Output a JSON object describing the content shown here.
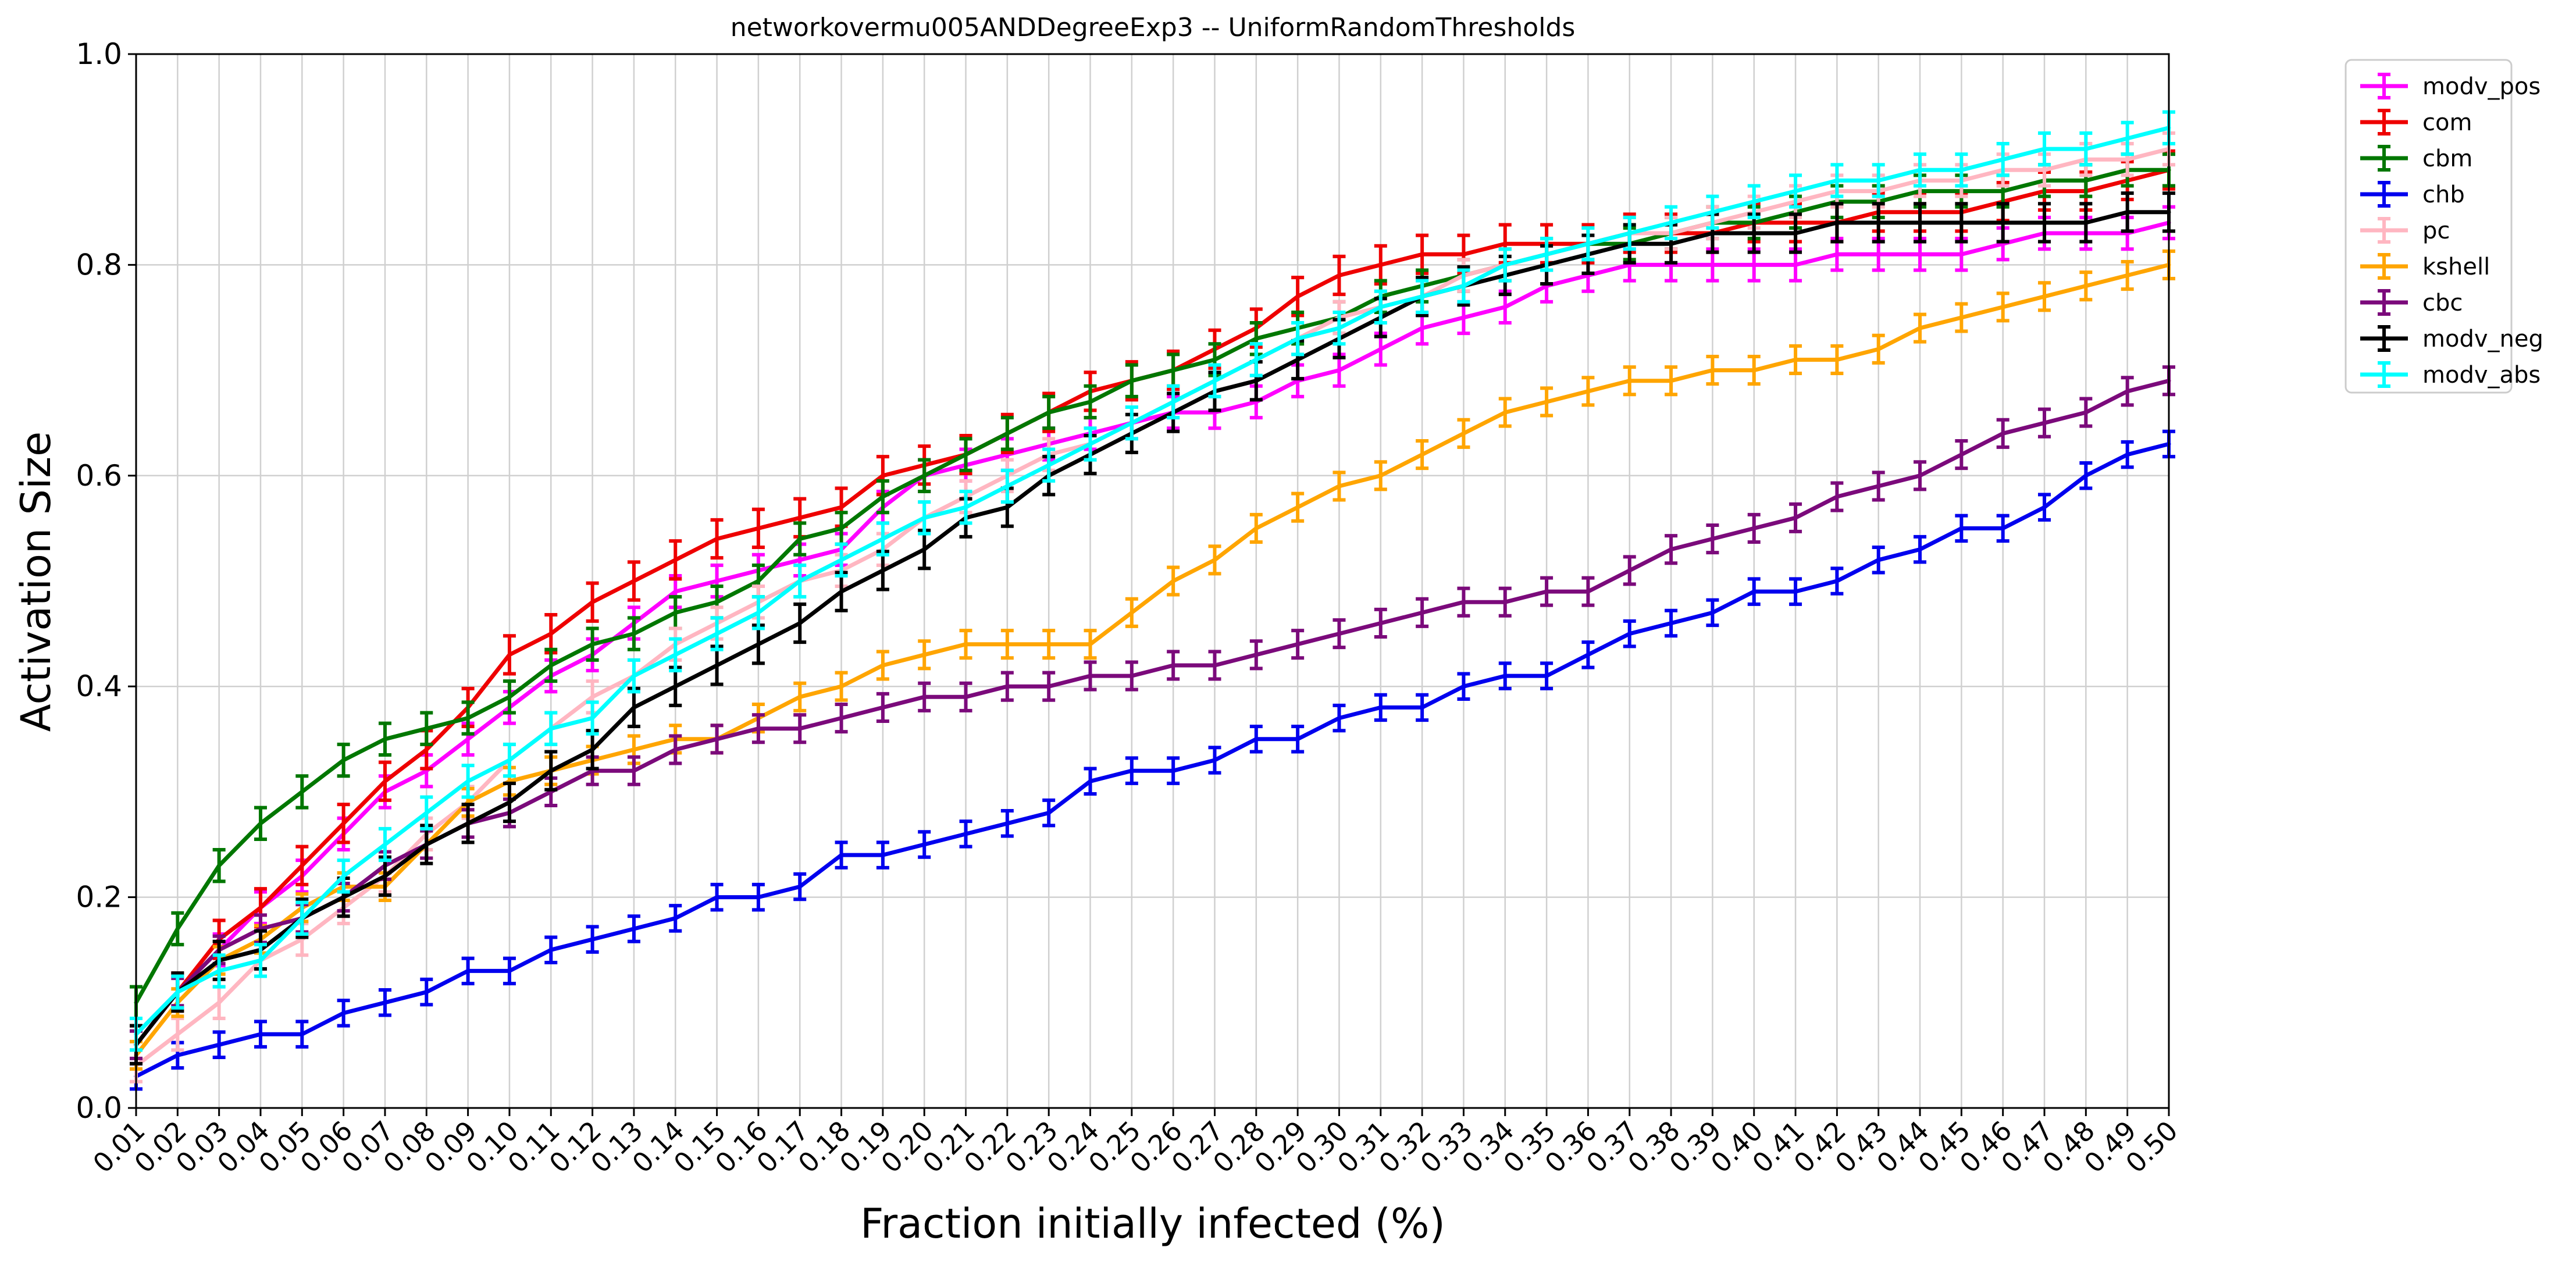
{
  "chart_data": {
    "type": "line",
    "title": "networkovermu005ANDDegreeExp3 -- UniformRandomThresholds",
    "xlabel": "Fraction initially infected (%)",
    "ylabel": "Activation Size",
    "ylim": [
      0.0,
      1.0
    ],
    "yticks": [
      "0.0",
      "0.2",
      "0.4",
      "0.6",
      "0.8",
      "1.0"
    ],
    "x": [
      "0.01",
      "0.02",
      "0.03",
      "0.04",
      "0.05",
      "0.06",
      "0.07",
      "0.08",
      "0.09",
      "0.10",
      "0.11",
      "0.12",
      "0.13",
      "0.14",
      "0.15",
      "0.16",
      "0.17",
      "0.18",
      "0.19",
      "0.20",
      "0.21",
      "0.22",
      "0.23",
      "0.24",
      "0.25",
      "0.26",
      "0.27",
      "0.28",
      "0.29",
      "0.30",
      "0.31",
      "0.32",
      "0.33",
      "0.34",
      "0.35",
      "0.36",
      "0.37",
      "0.38",
      "0.39",
      "0.40",
      "0.41",
      "0.42",
      "0.43",
      "0.44",
      "0.45",
      "0.46",
      "0.47",
      "0.48",
      "0.49",
      "0.50"
    ],
    "grid": true,
    "legend_position": "outside-top-right",
    "series": [
      {
        "name": "modv_pos",
        "color": "#ff00ff",
        "error": 0.015,
        "values": [
          0.07,
          0.11,
          0.15,
          0.19,
          0.22,
          0.26,
          0.3,
          0.32,
          0.35,
          0.38,
          0.41,
          0.43,
          0.46,
          0.49,
          0.5,
          0.51,
          0.52,
          0.53,
          0.57,
          0.6,
          0.61,
          0.62,
          0.63,
          0.64,
          0.65,
          0.66,
          0.66,
          0.67,
          0.69,
          0.7,
          0.72,
          0.74,
          0.75,
          0.76,
          0.78,
          0.79,
          0.8,
          0.8,
          0.8,
          0.8,
          0.8,
          0.81,
          0.81,
          0.81,
          0.81,
          0.82,
          0.83,
          0.83,
          0.83,
          0.84
        ]
      },
      {
        "name": "com",
        "color": "#ee0000",
        "error": 0.018,
        "values": [
          0.06,
          0.11,
          0.16,
          0.19,
          0.23,
          0.27,
          0.31,
          0.34,
          0.38,
          0.43,
          0.45,
          0.48,
          0.5,
          0.52,
          0.54,
          0.55,
          0.56,
          0.57,
          0.6,
          0.61,
          0.62,
          0.64,
          0.66,
          0.68,
          0.69,
          0.7,
          0.72,
          0.74,
          0.77,
          0.79,
          0.8,
          0.81,
          0.81,
          0.82,
          0.82,
          0.82,
          0.83,
          0.83,
          0.83,
          0.84,
          0.84,
          0.84,
          0.85,
          0.85,
          0.85,
          0.86,
          0.87,
          0.87,
          0.88,
          0.89
        ]
      },
      {
        "name": "cbm",
        "color": "#007700",
        "error": 0.015,
        "values": [
          0.1,
          0.17,
          0.23,
          0.27,
          0.3,
          0.33,
          0.35,
          0.36,
          0.37,
          0.39,
          0.42,
          0.44,
          0.45,
          0.47,
          0.48,
          0.5,
          0.54,
          0.55,
          0.58,
          0.6,
          0.62,
          0.64,
          0.66,
          0.67,
          0.69,
          0.7,
          0.71,
          0.73,
          0.74,
          0.75,
          0.77,
          0.78,
          0.79,
          0.8,
          0.81,
          0.82,
          0.82,
          0.83,
          0.84,
          0.84,
          0.85,
          0.86,
          0.86,
          0.87,
          0.87,
          0.87,
          0.88,
          0.88,
          0.89,
          0.89
        ]
      },
      {
        "name": "chb",
        "color": "#0000ee",
        "error": 0.012,
        "values": [
          0.03,
          0.05,
          0.06,
          0.07,
          0.07,
          0.09,
          0.1,
          0.11,
          0.13,
          0.13,
          0.15,
          0.16,
          0.17,
          0.18,
          0.2,
          0.2,
          0.21,
          0.24,
          0.24,
          0.25,
          0.26,
          0.27,
          0.28,
          0.31,
          0.32,
          0.32,
          0.33,
          0.35,
          0.35,
          0.37,
          0.38,
          0.38,
          0.4,
          0.41,
          0.41,
          0.43,
          0.45,
          0.46,
          0.47,
          0.49,
          0.49,
          0.5,
          0.52,
          0.53,
          0.55,
          0.55,
          0.57,
          0.6,
          0.62,
          0.63
        ]
      },
      {
        "name": "pc",
        "color": "#ffb6c1",
        "error": 0.015,
        "values": [
          0.04,
          0.07,
          0.1,
          0.14,
          0.16,
          0.19,
          0.22,
          0.26,
          0.29,
          0.33,
          0.36,
          0.39,
          0.41,
          0.44,
          0.46,
          0.48,
          0.5,
          0.51,
          0.53,
          0.56,
          0.58,
          0.6,
          0.62,
          0.63,
          0.65,
          0.67,
          0.69,
          0.71,
          0.73,
          0.75,
          0.76,
          0.77,
          0.79,
          0.8,
          0.81,
          0.82,
          0.83,
          0.83,
          0.84,
          0.85,
          0.86,
          0.87,
          0.87,
          0.88,
          0.88,
          0.89,
          0.89,
          0.9,
          0.9,
          0.91
        ]
      },
      {
        "name": "kshell",
        "color": "#ffa500",
        "error": 0.013,
        "values": [
          0.05,
          0.1,
          0.14,
          0.16,
          0.19,
          0.21,
          0.21,
          0.25,
          0.29,
          0.31,
          0.32,
          0.33,
          0.34,
          0.35,
          0.35,
          0.37,
          0.39,
          0.4,
          0.42,
          0.43,
          0.44,
          0.44,
          0.44,
          0.44,
          0.47,
          0.5,
          0.52,
          0.55,
          0.57,
          0.59,
          0.6,
          0.62,
          0.64,
          0.66,
          0.67,
          0.68,
          0.69,
          0.69,
          0.7,
          0.7,
          0.71,
          0.71,
          0.72,
          0.74,
          0.75,
          0.76,
          0.77,
          0.78,
          0.79,
          0.8
        ]
      },
      {
        "name": "cbc",
        "color": "#7b0a7b",
        "error": 0.013,
        "values": [
          0.06,
          0.11,
          0.15,
          0.17,
          0.18,
          0.2,
          0.23,
          0.25,
          0.27,
          0.28,
          0.3,
          0.32,
          0.32,
          0.34,
          0.35,
          0.36,
          0.36,
          0.37,
          0.38,
          0.39,
          0.39,
          0.4,
          0.4,
          0.41,
          0.41,
          0.42,
          0.42,
          0.43,
          0.44,
          0.45,
          0.46,
          0.47,
          0.48,
          0.48,
          0.49,
          0.49,
          0.51,
          0.53,
          0.54,
          0.55,
          0.56,
          0.58,
          0.59,
          0.6,
          0.62,
          0.64,
          0.65,
          0.66,
          0.68,
          0.69
        ]
      },
      {
        "name": "modv_neg",
        "color": "#000000",
        "error": 0.018,
        "values": [
          0.06,
          0.11,
          0.14,
          0.15,
          0.18,
          0.2,
          0.22,
          0.25,
          0.27,
          0.29,
          0.32,
          0.34,
          0.38,
          0.4,
          0.42,
          0.44,
          0.46,
          0.49,
          0.51,
          0.53,
          0.56,
          0.57,
          0.6,
          0.62,
          0.64,
          0.66,
          0.68,
          0.69,
          0.71,
          0.73,
          0.75,
          0.77,
          0.78,
          0.79,
          0.8,
          0.81,
          0.82,
          0.82,
          0.83,
          0.83,
          0.83,
          0.84,
          0.84,
          0.84,
          0.84,
          0.84,
          0.84,
          0.84,
          0.85,
          0.85
        ]
      },
      {
        "name": "modv_abs",
        "color": "#00ffff",
        "error": 0.015,
        "values": [
          0.07,
          0.11,
          0.13,
          0.14,
          0.18,
          0.22,
          0.25,
          0.28,
          0.31,
          0.33,
          0.36,
          0.37,
          0.41,
          0.43,
          0.45,
          0.47,
          0.5,
          0.52,
          0.54,
          0.56,
          0.57,
          0.59,
          0.61,
          0.63,
          0.65,
          0.67,
          0.69,
          0.71,
          0.73,
          0.74,
          0.76,
          0.77,
          0.78,
          0.8,
          0.81,
          0.82,
          0.83,
          0.84,
          0.85,
          0.86,
          0.87,
          0.88,
          0.88,
          0.89,
          0.89,
          0.9,
          0.91,
          0.91,
          0.92,
          0.93
        ]
      }
    ]
  }
}
